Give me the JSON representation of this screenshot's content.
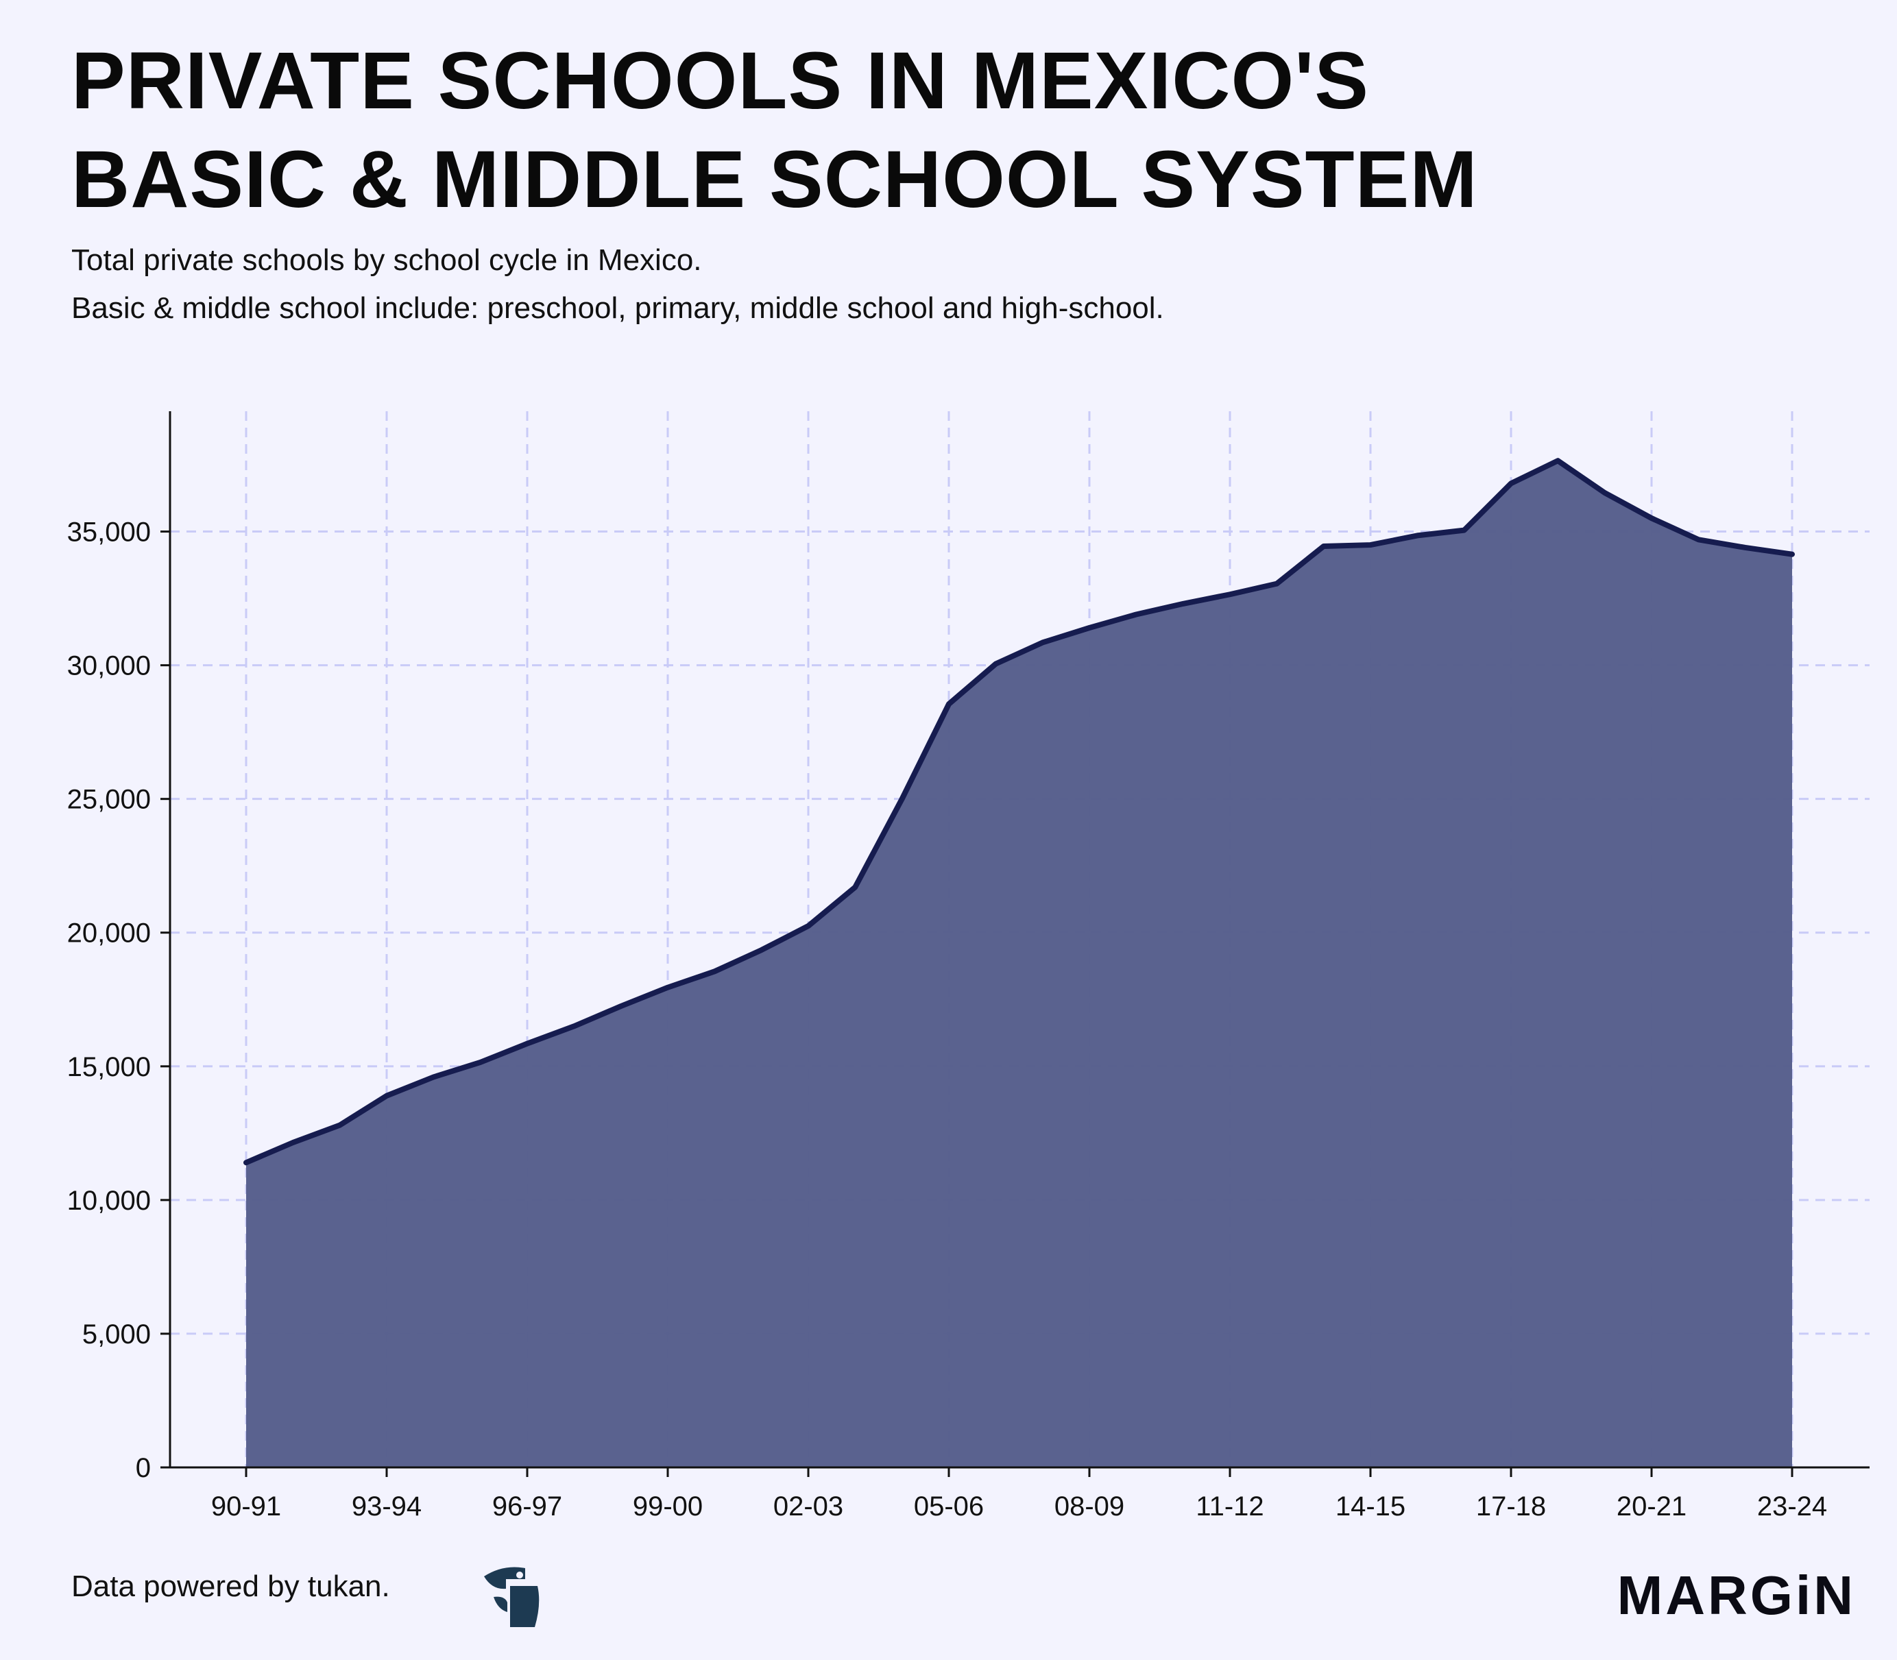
{
  "header": {
    "title_line1": "PRIVATE SCHOOLS IN MEXICO'S",
    "title_line2": "BASIC & MIDDLE SCHOOL SYSTEM",
    "subtitle_line1": "Total private schools by school cycle in Mexico.",
    "subtitle_line2": "Basic & middle school include: preschool, primary, middle school and high-school."
  },
  "footer": {
    "source": "Data powered by tukan.",
    "brand": "MARGiN"
  },
  "colors": {
    "background": "#f3f3fe",
    "area_fill": "#555d8b",
    "line": "#161c4f",
    "grid": "#c9cbf7",
    "axis": "#111111"
  },
  "chart_data": {
    "type": "area",
    "title": "PRIVATE SCHOOLS IN MEXICO'S BASIC & MIDDLE SCHOOL SYSTEM",
    "xlabel": "",
    "ylabel": "",
    "categories": [
      "90-91",
      "91-92",
      "92-93",
      "93-94",
      "94-95",
      "95-96",
      "96-97",
      "97-98",
      "98-99",
      "99-00",
      "00-01",
      "01-02",
      "02-03",
      "03-04",
      "04-05",
      "05-06",
      "06-07",
      "07-08",
      "08-09",
      "09-10",
      "10-11",
      "11-12",
      "12-13",
      "13-14",
      "14-15",
      "15-16",
      "16-17",
      "17-18",
      "18-19",
      "19-20",
      "20-21",
      "21-22",
      "22-23",
      "23-24"
    ],
    "x_tick_labels": [
      "90-91",
      "93-94",
      "96-97",
      "99-00",
      "02-03",
      "05-06",
      "08-09",
      "11-12",
      "14-15",
      "17-18",
      "20-21",
      "23-24"
    ],
    "values": [
      11400,
      12150,
      12800,
      13900,
      14600,
      15150,
      15850,
      16500,
      17250,
      17950,
      18550,
      19350,
      20250,
      21700,
      25000,
      28550,
      30050,
      30850,
      31400,
      31900,
      32300,
      32650,
      33050,
      34450,
      34500,
      34850,
      35050,
      36800,
      37650,
      36450,
      35500,
      34700,
      34400,
      34150
    ],
    "ylim": [
      0,
      39500
    ],
    "y_ticks": [
      0,
      5000,
      10000,
      15000,
      20000,
      25000,
      30000,
      35000
    ],
    "y_tick_labels": [
      "0",
      "5,000",
      "10,000",
      "15,000",
      "20,000",
      "25,000",
      "30,000",
      "35,000"
    ],
    "grid": true,
    "legend": "none"
  }
}
